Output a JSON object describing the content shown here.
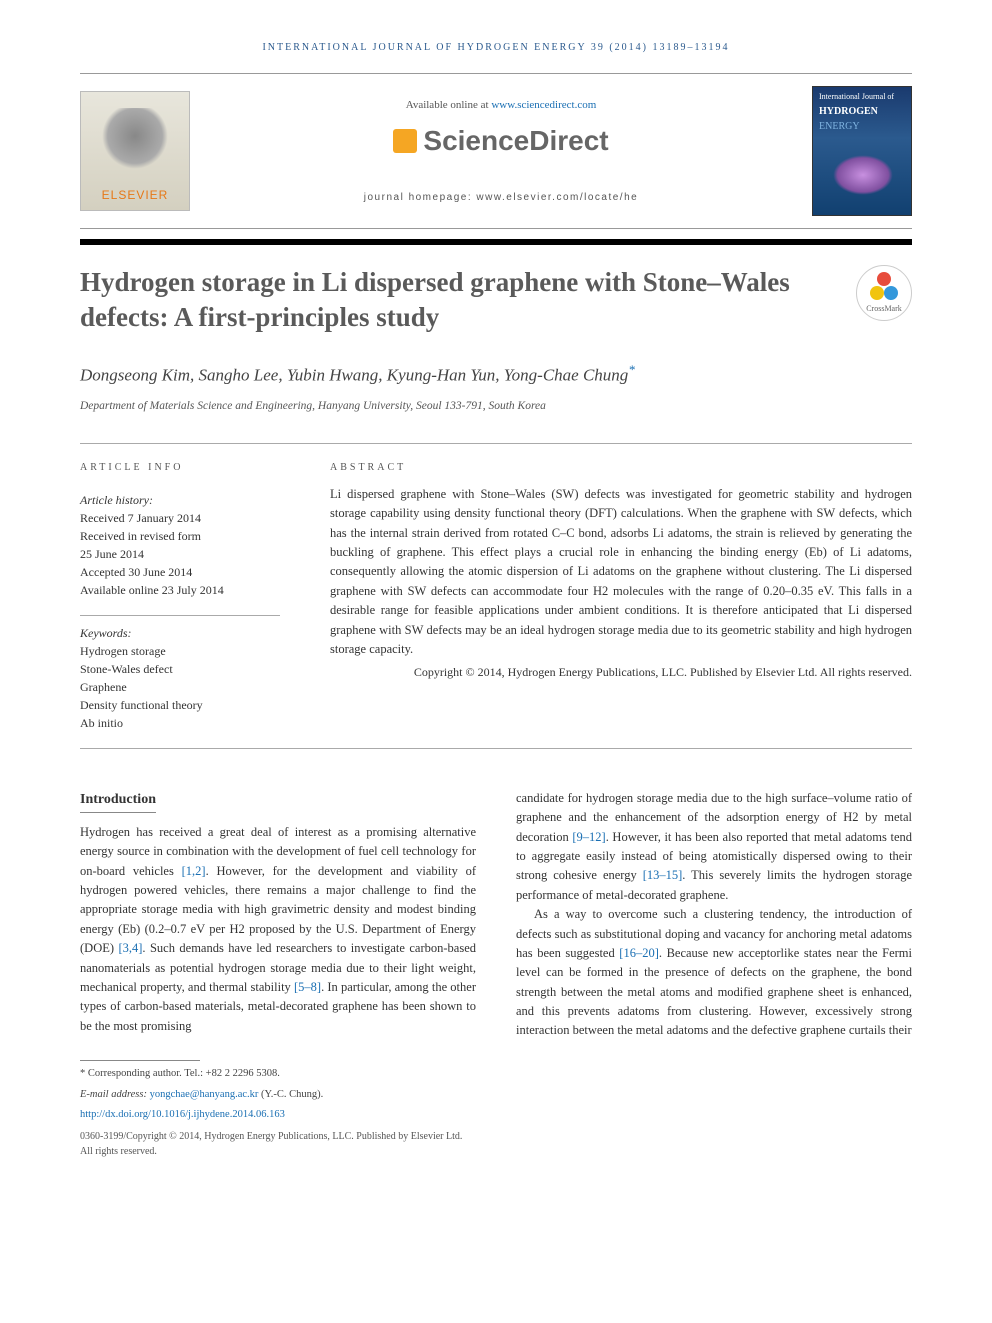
{
  "journal_citation": "INTERNATIONAL JOURNAL OF HYDROGEN ENERGY 39 (2014) 13189–13194",
  "header": {
    "available_text": "Available online at ",
    "available_link": "www.sciencedirect.com",
    "sciencedirect": "ScienceDirect",
    "elsevier": "ELSEVIER",
    "homepage_label": "journal homepage: www.elsevier.com/locate/he"
  },
  "cover": {
    "line1": "International Journal of",
    "line2": "HYDROGEN",
    "line3": "ENERGY"
  },
  "title": "Hydrogen storage in Li dispersed graphene with Stone–Wales defects: A first-principles study",
  "crossmark": "CrossMark",
  "authors": "Dongseong Kim, Sangho Lee, Yubin Hwang, Kyung-Han Yun, Yong-Chae Chung",
  "affiliation": "Department of Materials Science and Engineering, Hanyang University, Seoul 133-791, South Korea",
  "labels": {
    "article_info": "ARTICLE INFO",
    "abstract": "ABSTRACT",
    "history_heading": "Article history:",
    "keywords_heading": "Keywords:"
  },
  "history": {
    "received": "Received 7 January 2014",
    "revised1": "Received in revised form",
    "revised2": "25 June 2014",
    "accepted": "Accepted 30 June 2014",
    "online": "Available online 23 July 2014"
  },
  "keywords": [
    "Hydrogen storage",
    "Stone-Wales defect",
    "Graphene",
    "Density functional theory",
    "Ab initio"
  ],
  "abstract": "Li dispersed graphene with Stone–Wales (SW) defects was investigated for geometric stability and hydrogen storage capability using density functional theory (DFT) calculations. When the graphene with SW defects, which has the internal strain derived from rotated C–C bond, adsorbs Li adatoms, the strain is relieved by generating the buckling of graphene. This effect plays a crucial role in enhancing the binding energy (Eb) of Li adatoms, consequently allowing the atomic dispersion of Li adatoms on the graphene without clustering. The Li dispersed graphene with SW defects can accommodate four H2 molecules with the range of 0.20–0.35 eV. This falls in a desirable range for feasible applications under ambient conditions. It is therefore anticipated that Li dispersed graphene with SW defects may be an ideal hydrogen storage media due to its geometric stability and high hydrogen storage capacity.",
  "copyright": "Copyright © 2014, Hydrogen Energy Publications, LLC. Published by Elsevier Ltd. All rights reserved.",
  "intro_heading": "Introduction",
  "intro_para1_a": "Hydrogen has received a great deal of interest as a promising alternative energy source in combination with the development of fuel cell technology for on-board vehicles ",
  "intro_para1_ref1": "[1,2]",
  "intro_para1_b": ". However, for the development and viability of hydrogen powered vehicles, there remains a major challenge to find the appropriate storage media with high gravimetric density and modest binding energy (Eb) (0.2–0.7 eV per H2 proposed by the U.S. Department of Energy (DOE) ",
  "intro_para1_ref2": "[3,4]",
  "intro_para1_c": ". Such demands have led researchers to investigate carbon-based nanomaterials as potential hydrogen storage media due to their light weight, mechanical property, and thermal stability ",
  "intro_para1_ref3": "[5–8]",
  "intro_para1_d": ". In particular, among the other types of carbon-based materials, metal-decorated graphene has been shown to be the most promising",
  "col2_para1_a": "candidate for hydrogen storage media due to the high surface–volume ratio of graphene and the enhancement of the adsorption energy of H2 by metal decoration ",
  "col2_para1_ref1": "[9–12]",
  "col2_para1_b": ". However, it has been also reported that metal adatoms tend to aggregate easily instead of being atomistically dispersed owing to their strong cohesive energy ",
  "col2_para1_ref2": "[13–15]",
  "col2_para1_c": ". This severely limits the hydrogen storage performance of metal-decorated graphene.",
  "col2_para2_a": "As a way to overcome such a clustering tendency, the introduction of defects such as substitutional doping and vacancy for anchoring metal adatoms has been suggested ",
  "col2_para2_ref1": "[16–20]",
  "col2_para2_b": ". Because new acceptorlike states near the Fermi level can be formed in the presence of defects on the graphene, the bond strength between the metal atoms and modified graphene sheet is enhanced, and this prevents adatoms from clustering. However, excessively strong interaction between the metal adatoms and the defective graphene curtails their",
  "footnotes": {
    "corr": "* Corresponding author. Tel.: +82 2 2296 5308.",
    "email_label": "E-mail address: ",
    "email": "yongchae@hanyang.ac.kr",
    "email_suffix": " (Y.-C. Chung).",
    "doi": "http://dx.doi.org/10.1016/j.ijhydene.2014.06.163",
    "issn": "0360-3199/Copyright © 2014, Hydrogen Energy Publications, LLC. Published by Elsevier Ltd. All rights reserved."
  },
  "colors": {
    "link": "#1a6fb3",
    "elsevier_orange": "#e67817",
    "header_blue": "#2b5a8e"
  }
}
